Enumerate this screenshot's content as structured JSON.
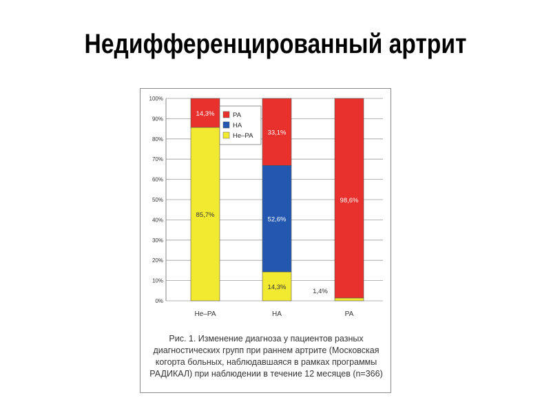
{
  "slide": {
    "title": "Недифференцированный артрит"
  },
  "figure": {
    "caption": "Рис. 1. Изменение диагноза у пациентов разных\nдиагностических групп при раннем артрите (Московская\nкогорта больных, наблюдавшаяся в рамках программы\nРАДИКАЛ) при наблюдении в течение 12 месяцев (n=366)"
  },
  "chart_data": {
    "type": "bar",
    "stacked": true,
    "categories": [
      "Не–РА",
      "НА",
      "РА"
    ],
    "ylim": [
      0,
      100
    ],
    "yticks": [
      0,
      10,
      20,
      30,
      40,
      50,
      60,
      70,
      80,
      90,
      100
    ],
    "ytick_labels": [
      "0%",
      "10%",
      "20%",
      "30%",
      "40%",
      "50%",
      "60%",
      "70%",
      "80%",
      "90%",
      "100%"
    ],
    "grid": true,
    "legend_position": "top-right-of-first-bar",
    "series": [
      {
        "name": "Не–РА",
        "color": "#f2e931",
        "values": [
          85.7,
          14.3,
          1.4
        ],
        "labels": [
          "85,7%",
          "14,3%",
          "1,4%"
        ]
      },
      {
        "name": "НА",
        "color": "#2357b0",
        "values": [
          0,
          52.6,
          0
        ],
        "labels": [
          "",
          "52,6%",
          ""
        ]
      },
      {
        "name": "РА",
        "color": "#e8302d",
        "values": [
          14.3,
          33.1,
          98.6
        ],
        "labels": [
          "14,3%",
          "33,1%",
          "98,6%"
        ]
      }
    ],
    "legend_order": [
      "РА",
      "НА",
      "Не–РА"
    ]
  }
}
